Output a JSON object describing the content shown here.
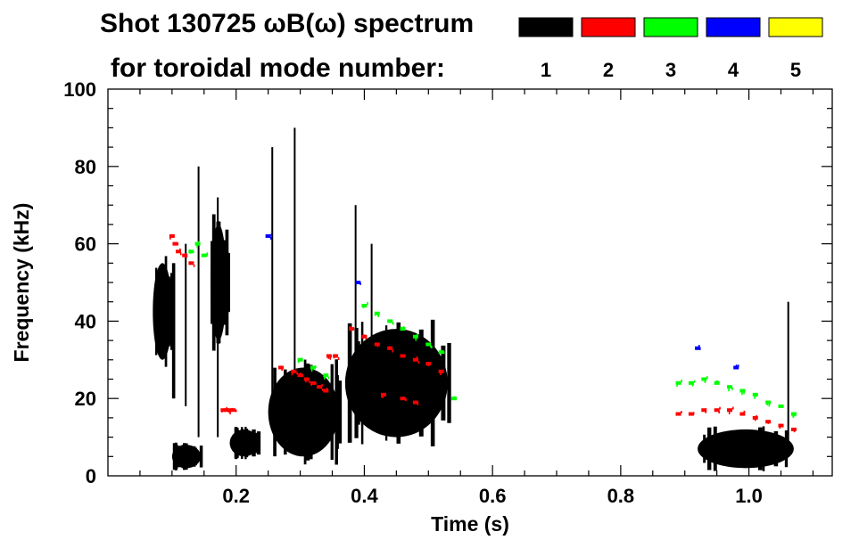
{
  "chart_data": {
    "type": "scatter",
    "title": "Shot 130725 ωB(ω) spectrum",
    "subtitle": "for toroidal mode number:",
    "xlabel": "Time (s)",
    "ylabel": "Frequency (kHz)",
    "xlim": [
      0.0,
      1.13
    ],
    "ylim": [
      0,
      100
    ],
    "x_ticks": [
      0.2,
      0.4,
      0.6,
      0.8,
      1.0
    ],
    "x_tick_labels": [
      "0.2",
      "0.4",
      "0.6",
      "0.8",
      "1.0"
    ],
    "y_ticks": [
      0,
      20,
      40,
      60,
      80,
      100
    ],
    "y_tick_labels": [
      "0",
      "20",
      "40",
      "60",
      "80",
      "100"
    ],
    "legend": [
      {
        "label": "1",
        "color": "#000000"
      },
      {
        "label": "2",
        "color": "#ff0000"
      },
      {
        "label": "3",
        "color": "#00ff00"
      },
      {
        "label": "4",
        "color": "#0000ff"
      },
      {
        "label": "5",
        "color": "#ffff00"
      }
    ],
    "series": [
      {
        "name": "1",
        "color": "#000000",
        "blobs": [
          {
            "t": [
              0.07,
              0.1
            ],
            "f": [
              30,
              55
            ]
          },
          {
            "t": [
              0.1,
              0.145
            ],
            "f": [
              2,
              8
            ]
          },
          {
            "t": [
              0.16,
              0.185
            ],
            "f": [
              35,
              65
            ]
          },
          {
            "t": [
              0.19,
              0.235
            ],
            "f": [
              5,
              12
            ]
          },
          {
            "t": [
              0.25,
              0.36
            ],
            "f": [
              5,
              28
            ]
          },
          {
            "t": [
              0.37,
              0.53
            ],
            "f": [
              10,
              38
            ]
          },
          {
            "t": [
              0.92,
              1.07
            ],
            "f": [
              2,
              12
            ]
          }
        ],
        "lines": [
          {
            "t": [
              0.1,
              0.105
            ],
            "f": [
              20,
              55
            ]
          },
          {
            "t": [
              0.12,
              0.122
            ],
            "f": [
              18,
              60
            ]
          },
          {
            "t": [
              0.14,
              0.142
            ],
            "f": [
              10,
              80
            ]
          },
          {
            "t": [
              0.17,
              0.172
            ],
            "f": [
              10,
              72
            ]
          },
          {
            "t": [
              0.255,
              0.257
            ],
            "f": [
              18,
              85
            ]
          },
          {
            "t": [
              0.29,
              0.292
            ],
            "f": [
              20,
              90
            ]
          },
          {
            "t": [
              0.385,
              0.387
            ],
            "f": [
              18,
              70
            ]
          },
          {
            "t": [
              0.41,
              0.412
            ],
            "f": [
              25,
              60
            ]
          },
          {
            "t": [
              1.06,
              1.062
            ],
            "f": [
              5,
              45
            ]
          }
        ]
      },
      {
        "name": "2",
        "color": "#ff0000",
        "points": [
          [
            0.1,
            62
          ],
          [
            0.105,
            60
          ],
          [
            0.11,
            58
          ],
          [
            0.12,
            57
          ],
          [
            0.13,
            55
          ],
          [
            0.18,
            17
          ],
          [
            0.185,
            17
          ],
          [
            0.19,
            17
          ],
          [
            0.195,
            17
          ],
          [
            0.27,
            28
          ],
          [
            0.29,
            27
          ],
          [
            0.3,
            26
          ],
          [
            0.31,
            25
          ],
          [
            0.32,
            24
          ],
          [
            0.33,
            23
          ],
          [
            0.34,
            22
          ],
          [
            0.345,
            31
          ],
          [
            0.355,
            31
          ],
          [
            0.38,
            38
          ],
          [
            0.4,
            36
          ],
          [
            0.42,
            34
          ],
          [
            0.44,
            33
          ],
          [
            0.46,
            31
          ],
          [
            0.48,
            30
          ],
          [
            0.5,
            29
          ],
          [
            0.52,
            27
          ],
          [
            0.43,
            21
          ],
          [
            0.46,
            20
          ],
          [
            0.48,
            19
          ],
          [
            0.89,
            16
          ],
          [
            0.91,
            16
          ],
          [
            0.93,
            17
          ],
          [
            0.95,
            17
          ],
          [
            0.97,
            17
          ],
          [
            0.99,
            16
          ],
          [
            1.01,
            15
          ],
          [
            1.03,
            14
          ],
          [
            1.05,
            13
          ],
          [
            1.07,
            12
          ]
        ]
      },
      {
        "name": "3",
        "color": "#00ff00",
        "points": [
          [
            0.13,
            58
          ],
          [
            0.14,
            60
          ],
          [
            0.15,
            57
          ],
          [
            0.3,
            30
          ],
          [
            0.32,
            28
          ],
          [
            0.34,
            26
          ],
          [
            0.4,
            44
          ],
          [
            0.42,
            42
          ],
          [
            0.44,
            40
          ],
          [
            0.46,
            38
          ],
          [
            0.48,
            36
          ],
          [
            0.5,
            34
          ],
          [
            0.52,
            32
          ],
          [
            0.54,
            20
          ],
          [
            0.89,
            24
          ],
          [
            0.91,
            24
          ],
          [
            0.93,
            25
          ],
          [
            0.95,
            24
          ],
          [
            0.97,
            23
          ],
          [
            0.99,
            22
          ],
          [
            1.01,
            21
          ],
          [
            1.03,
            19
          ],
          [
            1.05,
            18
          ],
          [
            1.07,
            16
          ]
        ]
      },
      {
        "name": "4",
        "color": "#0000ff",
        "points": [
          [
            0.25,
            62
          ],
          [
            0.39,
            50
          ],
          [
            0.92,
            33
          ],
          [
            0.98,
            28
          ]
        ]
      },
      {
        "name": "5",
        "color": "#ffff00",
        "points": []
      }
    ]
  }
}
